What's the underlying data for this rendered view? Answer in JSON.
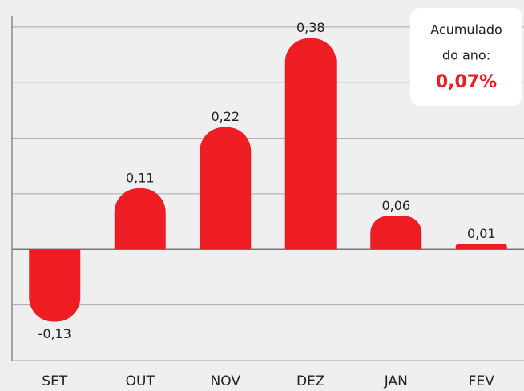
{
  "chart_data": {
    "type": "bar",
    "categories": [
      "SET",
      "OUT",
      "NOV",
      "DEZ",
      "JAN",
      "FEV"
    ],
    "values": [
      -0.13,
      0.11,
      0.22,
      0.38,
      0.06,
      0.01
    ],
    "value_labels": [
      "-0,13",
      "0,11",
      "0,22",
      "0,38",
      "0,06",
      "0,01"
    ],
    "color": "#ee1d23",
    "ylim": [
      -0.2,
      0.42
    ],
    "yticks": [
      -0.2,
      -0.1,
      0,
      0.1,
      0.2,
      0.3,
      0.4
    ],
    "grid": true,
    "annotation": {
      "lines": [
        "Acumulado",
        "do ano:"
      ],
      "value": "0,07%"
    }
  }
}
